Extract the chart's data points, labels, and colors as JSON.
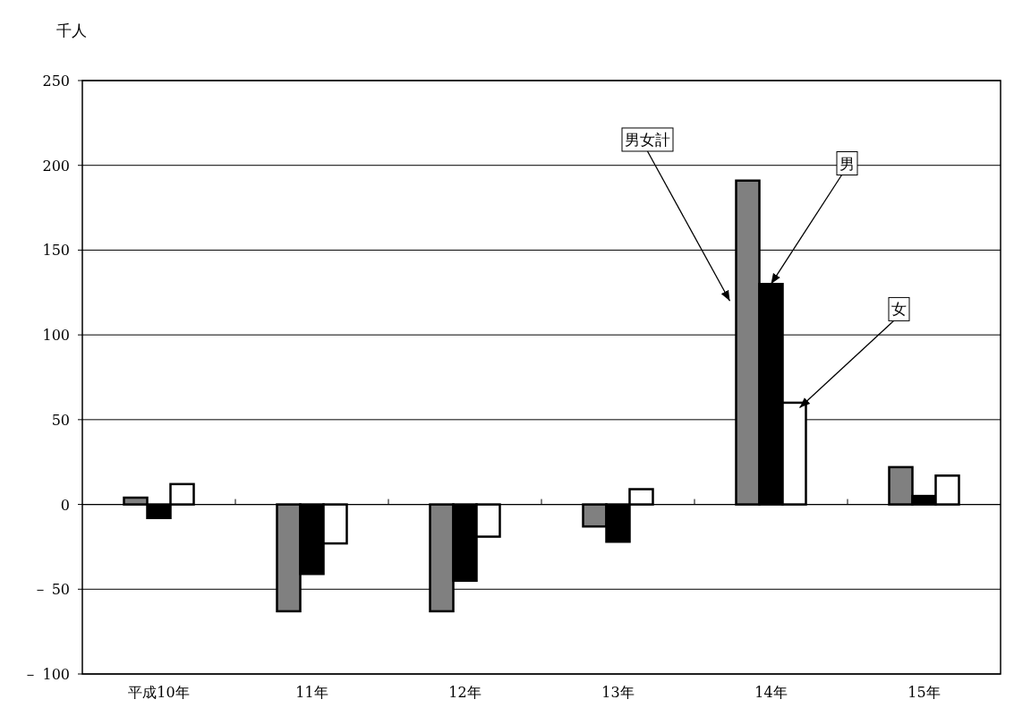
{
  "chart_data": {
    "type": "bar",
    "ylabel": "千人",
    "categories": [
      "平成10年",
      "11年",
      "12年",
      "13年",
      "14年",
      "15年"
    ],
    "series": [
      {
        "name": "男女計",
        "color": "#808080",
        "values": [
          4,
          -63,
          -63,
          -13,
          191,
          22
        ]
      },
      {
        "name": "男",
        "color": "#000000",
        "values": [
          -8,
          -41,
          -45,
          -22,
          130,
          5
        ]
      },
      {
        "name": "女",
        "color": "#ffffff",
        "values": [
          12,
          -23,
          -19,
          9,
          60,
          17
        ]
      }
    ],
    "ylim": [
      -100,
      250
    ],
    "yticks": [
      {
        "value": -100,
        "label": "－ 100"
      },
      {
        "value": -50,
        "label": "－ 50"
      },
      0,
      50,
      100,
      150,
      200,
      250
    ],
    "grid": "y"
  }
}
